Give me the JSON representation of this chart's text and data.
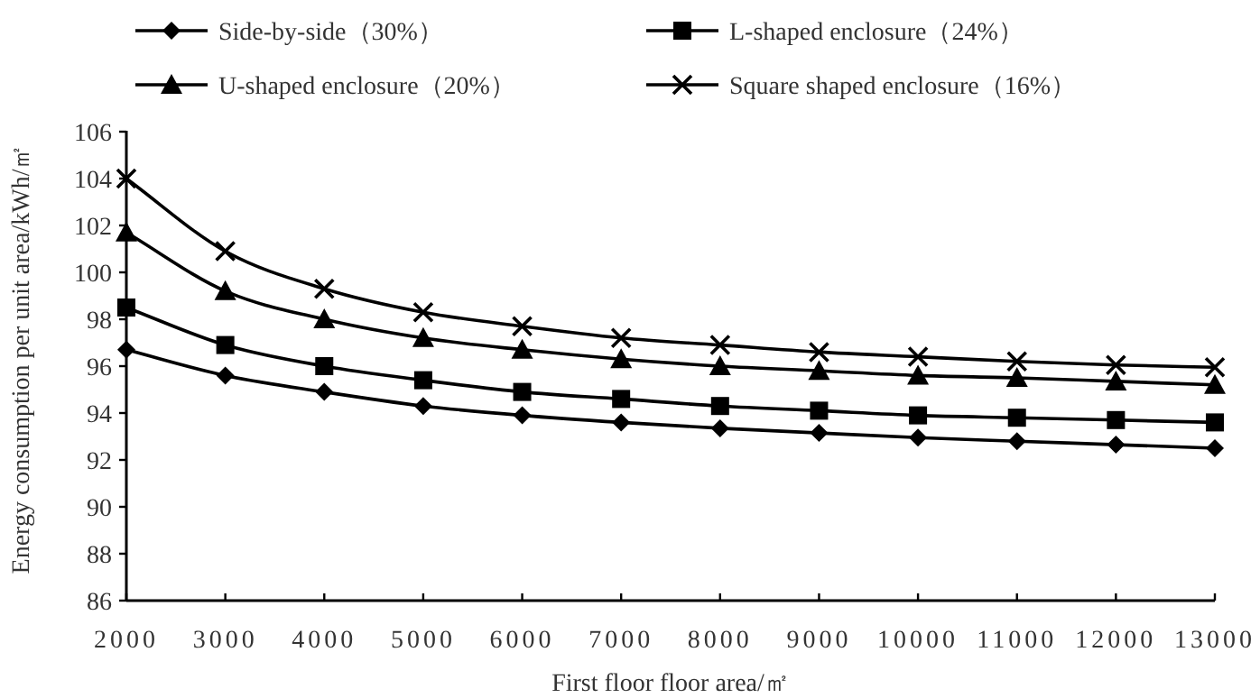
{
  "chart_data": {
    "type": "line",
    "xlabel": "First floor floor area/㎡",
    "ylabel": "Energy consumption per unit area/kWh/㎡",
    "x": [
      2000,
      3000,
      4000,
      5000,
      6000,
      7000,
      8000,
      9000,
      10000,
      11000,
      12000,
      13000
    ],
    "xlim": [
      2000,
      13000
    ],
    "xticks": [
      2000,
      3000,
      4000,
      5000,
      6000,
      7000,
      8000,
      9000,
      10000,
      11000,
      12000,
      13000
    ],
    "ylim": [
      86,
      106
    ],
    "yticks": [
      86,
      88,
      90,
      92,
      94,
      96,
      98,
      100,
      102,
      104,
      106
    ],
    "grid": false,
    "legend": "top",
    "series": [
      {
        "name": "Side-by-side（30%）",
        "color": "#000000",
        "marker": "diamond",
        "values": [
          96.7,
          95.6,
          94.9,
          94.3,
          93.9,
          93.6,
          93.35,
          93.15,
          92.95,
          92.8,
          92.65,
          92.5
        ]
      },
      {
        "name": "L-shaped enclosure（24%）",
        "color": "#000000",
        "marker": "square",
        "values": [
          98.5,
          96.9,
          96.0,
          95.4,
          94.9,
          94.6,
          94.3,
          94.1,
          93.9,
          93.8,
          93.7,
          93.6
        ]
      },
      {
        "name": "U-shaped enclosure（20%）",
        "color": "#000000",
        "marker": "triangle",
        "values": [
          101.7,
          99.2,
          98.0,
          97.2,
          96.7,
          96.3,
          96.0,
          95.8,
          95.6,
          95.5,
          95.35,
          95.2
        ]
      },
      {
        "name": "Square shaped enclosure（16%）",
        "color": "#000000",
        "marker": "cross",
        "values": [
          104.0,
          100.9,
          99.3,
          98.3,
          97.7,
          97.2,
          96.9,
          96.6,
          96.4,
          96.2,
          96.05,
          95.95
        ]
      }
    ]
  }
}
